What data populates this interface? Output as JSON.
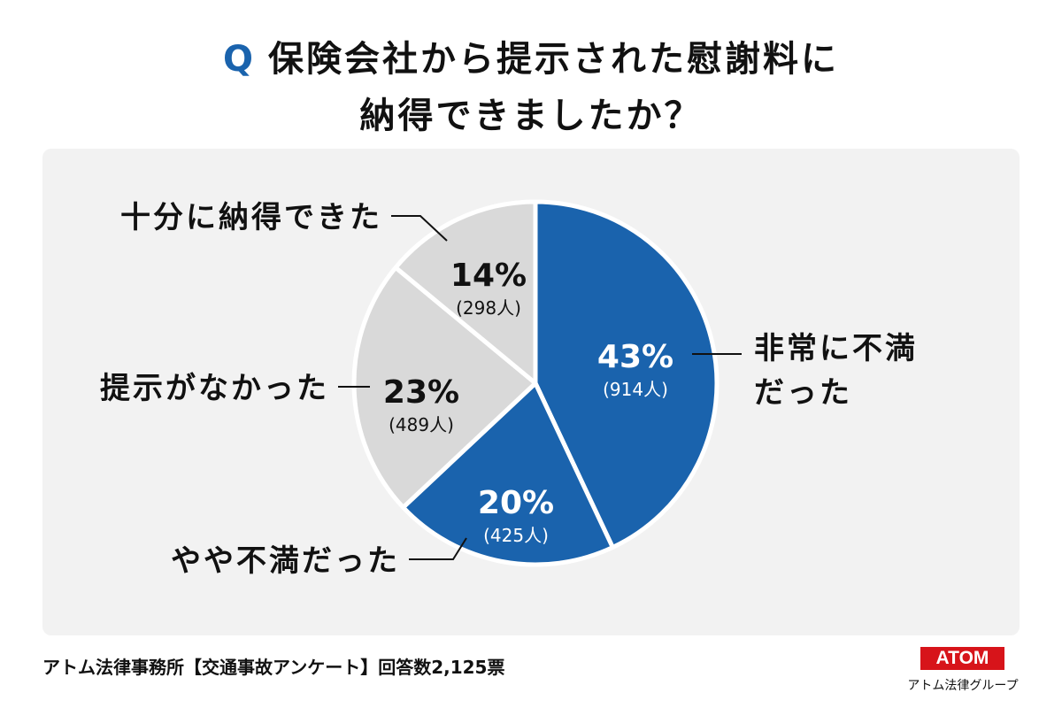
{
  "title": {
    "q": "Q",
    "line1": "保険会社から提示された慰謝料に",
    "line2": "納得できましたか？"
  },
  "chart_data": {
    "type": "pie",
    "title": "保険会社から提示された慰謝料に納得できましたか？",
    "slices": [
      {
        "label": "非常に不満だった",
        "label_lines": [
          "非常に不満",
          "だった"
        ],
        "percent": 43,
        "pct_text": "43%",
        "count_text": "(914人)",
        "count": 914,
        "color": "#1a63ad",
        "text_color": "#ffffff"
      },
      {
        "label": "やや不満だった",
        "label_lines": [
          "やや不満だった"
        ],
        "percent": 20,
        "pct_text": "20%",
        "count_text": "(425人)",
        "count": 425,
        "color": "#1a63ad",
        "text_color": "#ffffff"
      },
      {
        "label": "提示がなかった",
        "label_lines": [
          "提示がなかった"
        ],
        "percent": 23,
        "pct_text": "23%",
        "count_text": "(489人)",
        "count": 489,
        "color": "#d9d9d9",
        "text_color": "#111111"
      },
      {
        "label": "十分に納得できた",
        "label_lines": [
          "十分に納得できた"
        ],
        "percent": 14,
        "pct_text": "14%",
        "count_text": "(298人)",
        "count": 298,
        "color": "#d9d9d9",
        "text_color": "#111111"
      }
    ]
  },
  "footer": "アトム法律事務所【交通事故アンケート】回答数2,125票",
  "logo": {
    "brand": "ATOM",
    "sub": "アトム法律グループ"
  }
}
